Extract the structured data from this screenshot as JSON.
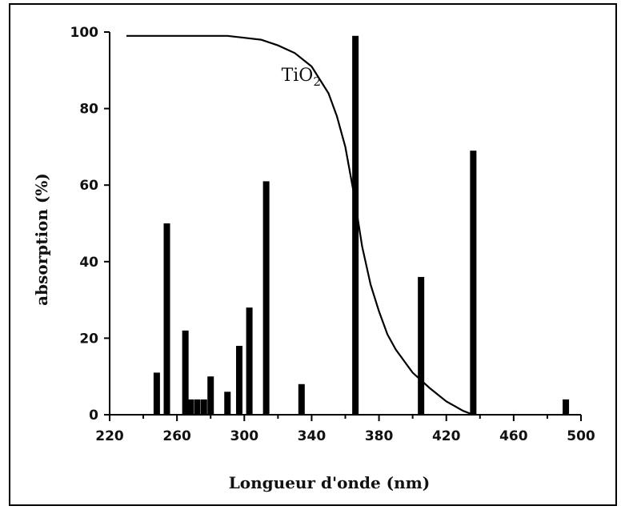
{
  "chart_data": {
    "type": "bar",
    "xlabel": "Longueur d'onde  (nm)",
    "ylabel": "absorption (%)",
    "xlim": [
      220,
      500
    ],
    "ylim": [
      0,
      100
    ],
    "xticks": [
      220,
      260,
      300,
      340,
      380,
      420,
      460,
      500
    ],
    "yticks": [
      0,
      20,
      40,
      60,
      80,
      100
    ],
    "grid": false,
    "bars": [
      {
        "x": 248,
        "value": 11
      },
      {
        "x": 254,
        "value": 50
      },
      {
        "x": 265,
        "value": 22
      },
      {
        "x": 268,
        "value": 4
      },
      {
        "x": 272,
        "value": 4
      },
      {
        "x": 276,
        "value": 4
      },
      {
        "x": 280,
        "value": 10
      },
      {
        "x": 290,
        "value": 6
      },
      {
        "x": 297,
        "value": 18
      },
      {
        "x": 303,
        "value": 28
      },
      {
        "x": 313,
        "value": 61
      },
      {
        "x": 334,
        "value": 8
      },
      {
        "x": 366,
        "value": 99
      },
      {
        "x": 405,
        "value": 36
      },
      {
        "x": 436,
        "value": 69
      },
      {
        "x": 491,
        "value": 4
      }
    ],
    "curve": {
      "name": "TiO",
      "name_subscript": "2",
      "x": [
        230,
        270,
        290,
        300,
        310,
        320,
        330,
        340,
        350,
        355,
        360,
        365,
        370,
        375,
        380,
        385,
        390,
        400,
        410,
        420,
        430,
        436
      ],
      "y": [
        99,
        99,
        99,
        98.5,
        98,
        96.5,
        94.5,
        91,
        84,
        78,
        70,
        58,
        44,
        34,
        27,
        21,
        17,
        11,
        7,
        3.5,
        1,
        0
      ]
    }
  }
}
